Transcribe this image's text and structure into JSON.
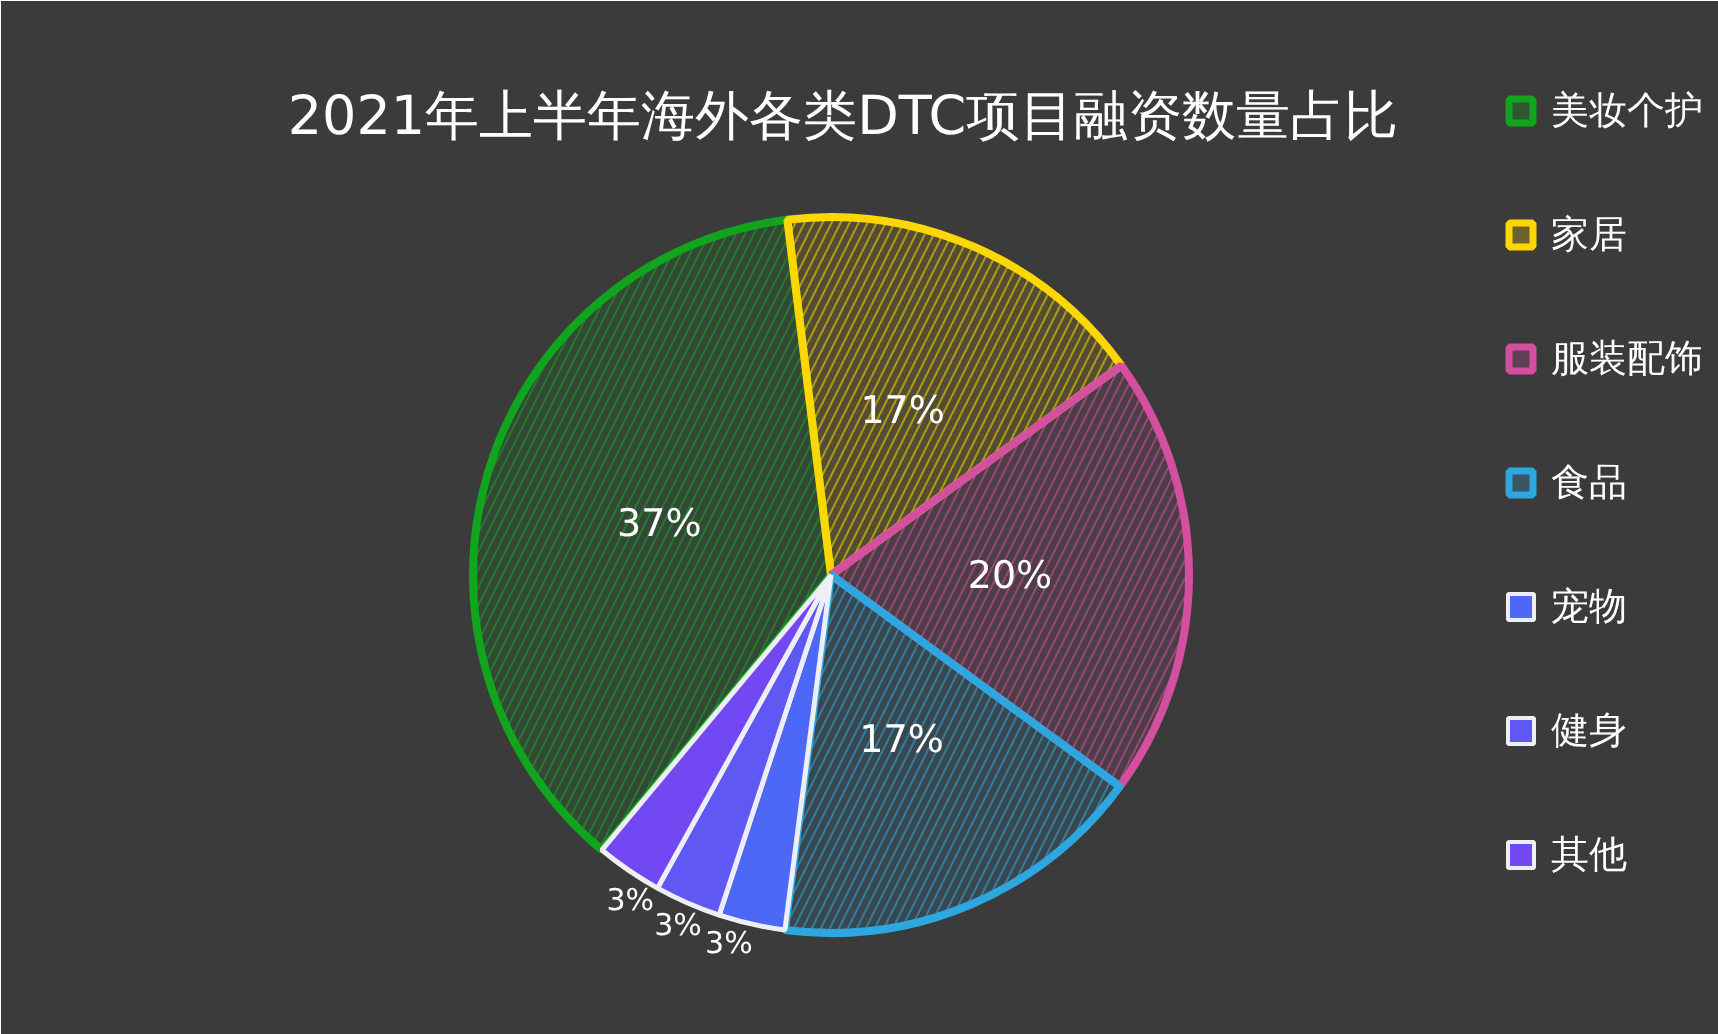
{
  "chart_data": {
    "type": "pie",
    "title": "2021年上半年海外各类DTC项目融资数量占比",
    "categories": [
      "美妆个护",
      "家居",
      "服装配饰",
      "食品",
      "宠物",
      "健身",
      "其他"
    ],
    "values": [
      37,
      17,
      20,
      17,
      3,
      3,
      3
    ],
    "colors": [
      "#11a51d",
      "#ffd700",
      "#d44fa0",
      "#2ea7e0",
      "#4d68f7",
      "#5f58f4",
      "#7148f2"
    ],
    "value_labels": [
      "37%",
      "17%",
      "20%",
      "17%",
      "3%",
      "3%",
      "3%"
    ],
    "legend": "right"
  }
}
